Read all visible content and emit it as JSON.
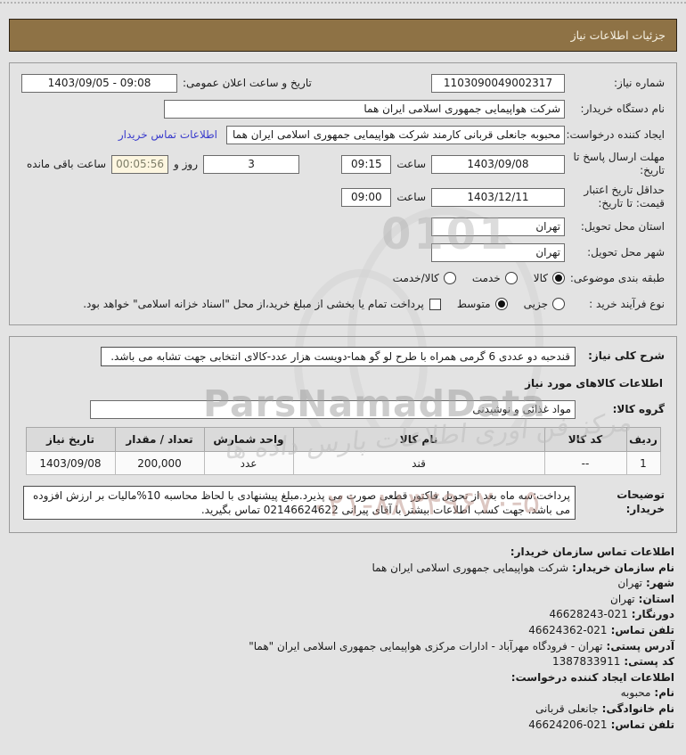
{
  "page": {
    "title_bar": "جزئیات اطلاعات نیاز"
  },
  "form1": {
    "need_number_label": "شماره نیاز:",
    "need_number": "1103090049002317",
    "announce_label": "تاریخ و ساعت اعلان عمومی:",
    "announce_value": "1403/09/05 - 09:08",
    "buyer_org_label": "نام دستگاه خریدار:",
    "buyer_org": "شرکت هواپیمایی جمهوری اسلامی ایران هما",
    "creator_label": "ایجاد کننده درخواست:",
    "creator": "محبوبه جانعلی قربانی کارمند شرکت هواپیمایی جمهوری اسلامی ایران هما",
    "buyer_contact_link": "اطلاعات تماس خریدار",
    "deadline_label": "مهلت ارسال پاسخ تا تاریخ:",
    "deadline_date": "1403/09/08",
    "hour_label": "ساعت",
    "deadline_time": "09:15",
    "days_remaining": "3",
    "days_and_label": "روز و",
    "countdown": "00:05:56",
    "remaining_label": "ساعت باقی مانده",
    "validity_label": "حداقل تاریخ اعتبار قیمت: تا تاریخ:",
    "validity_date": "1403/12/11",
    "validity_time": "09:00",
    "province_label": "استان محل تحویل:",
    "province": "تهران",
    "city_label": "شهر محل تحویل:",
    "city": "تهران",
    "classification_label": "طبقه بندی موضوعی:",
    "class_options": [
      {
        "label": "کالا",
        "selected": true
      },
      {
        "label": "خدمت",
        "selected": false
      },
      {
        "label": "کالا/خدمت",
        "selected": false
      }
    ],
    "process_label": "نوع فرآیند خرید :",
    "process_options": [
      {
        "label": "جزیی",
        "selected": false
      },
      {
        "label": "متوسط",
        "selected": true
      }
    ],
    "treasury_checkbox_checked": false,
    "treasury_checkbox_label": "پرداخت تمام یا بخشی از مبلغ خرید،از محل \"اسناد خزانه اسلامی\" خواهد بود."
  },
  "form2": {
    "desc_label": "شرح کلی نیاز:",
    "desc_value": "قندحبه دو عددی 6 گرمی همراه با طرح لو گو هما-دویست هزار عدد-کالای انتخابی جهت تشابه می باشد.",
    "goods_info_heading": "اطلاعات کالاهای مورد نیاز",
    "goods_group_label": "گروه کالا:",
    "goods_group": "مواد غذائی و نوشیدنی",
    "table": {
      "headers": [
        "ردیف",
        "کد کالا",
        "نام کالا",
        "واحد شمارش",
        "تعداد / مقدار",
        "تاریخ نیاز"
      ],
      "rows": [
        [
          "1",
          "--",
          "قند",
          "عدد",
          "200,000",
          "1403/09/08"
        ]
      ]
    },
    "buyer_notes_label": "توضیحات خریدار:",
    "buyer_notes": "پرداخت:سه ماه بعد از تحویل فاکتور قطعی صورت می پذیرد.مبلغ پیشنهادی با لحاظ محاسبه 10%مالیات بر ارزش افزوده می باشد. جهت کسب اطلاعات بیشتر با آقای پیرانی 02146624622 تماس بگیرید."
  },
  "contact": {
    "heading": "اطلاعات تماس سازمان خریدار:",
    "fields": [
      {
        "label": "نام سازمان خریدار:",
        "value": "شرکت هواپیمایی جمهوری اسلامی ایران هما"
      },
      {
        "label": "شهر:",
        "value": "تهران"
      },
      {
        "label": "استان:",
        "value": "تهران"
      },
      {
        "label": "دورنگار:",
        "value": "46628243-021"
      },
      {
        "label": "تلفن تماس:",
        "value": "46624362-021"
      },
      {
        "label": "آدرس پستی:",
        "value": "تهران - فرودگاه مهرآباد - ادارات مرکزی هواپیمایی جمهوری اسلامی ایران \"هما\""
      },
      {
        "label": "کد پستی:",
        "value": "1387833911"
      }
    ],
    "creator_heading": "اطلاعات ایجاد کننده درخواست:",
    "creator_fields": [
      {
        "label": "نام:",
        "value": "محبوبه"
      },
      {
        "label": "نام خانوادگی:",
        "value": "جانعلی قربانی"
      },
      {
        "label": "تلفن تماس:",
        "value": "46624206-021"
      }
    ]
  },
  "watermark": {
    "brand": "ParsNamadData",
    "calligraphy": "مرکز فن آوری اطلاعات پارس داده ها",
    "phone": "۰۲۱-۸۸۳۴۹۶۷۰-۵",
    "digits": "0101"
  },
  "colors": {
    "title_bar_bg": "#8e7245",
    "page_bg": "#e3e3e3",
    "link_blue": "#3a3ccc",
    "countdown_bg": "#fdf6e0",
    "table_header_bg": "#dadada"
  }
}
